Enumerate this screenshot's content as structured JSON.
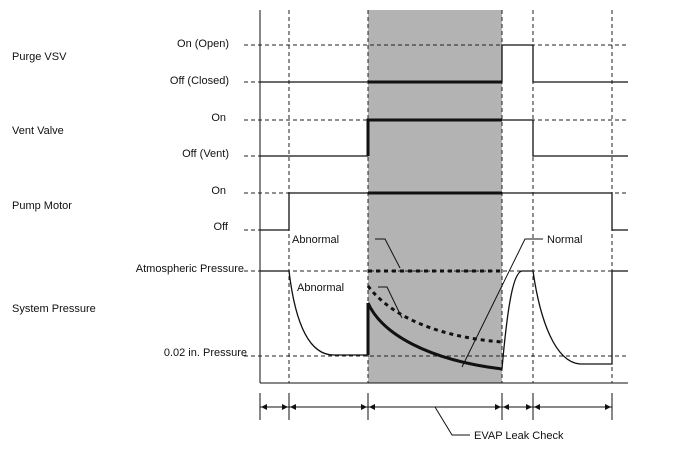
{
  "signals": {
    "purge_vsv": {
      "name": "Purge VSV",
      "high": "On (Open)",
      "low": "Off (Closed)"
    },
    "vent_valve": {
      "name": "Vent Valve",
      "high": "On",
      "low": "Off (Vent)"
    },
    "pump_motor": {
      "name": "Pump Motor",
      "high": "On",
      "low": "Off"
    },
    "system_pressure": {
      "name": "System Pressure",
      "high": "Atmospheric Pressure",
      "low": "0.02 in. Pressure"
    }
  },
  "annotations": {
    "abnormal_top": "Abnormal",
    "abnormal_mid": "Abnormal",
    "normal": "Normal"
  },
  "phase": {
    "label": "EVAP Leak Check"
  },
  "colors": {
    "shaded_phase": "#b3b3b3",
    "line": "#111111"
  }
}
